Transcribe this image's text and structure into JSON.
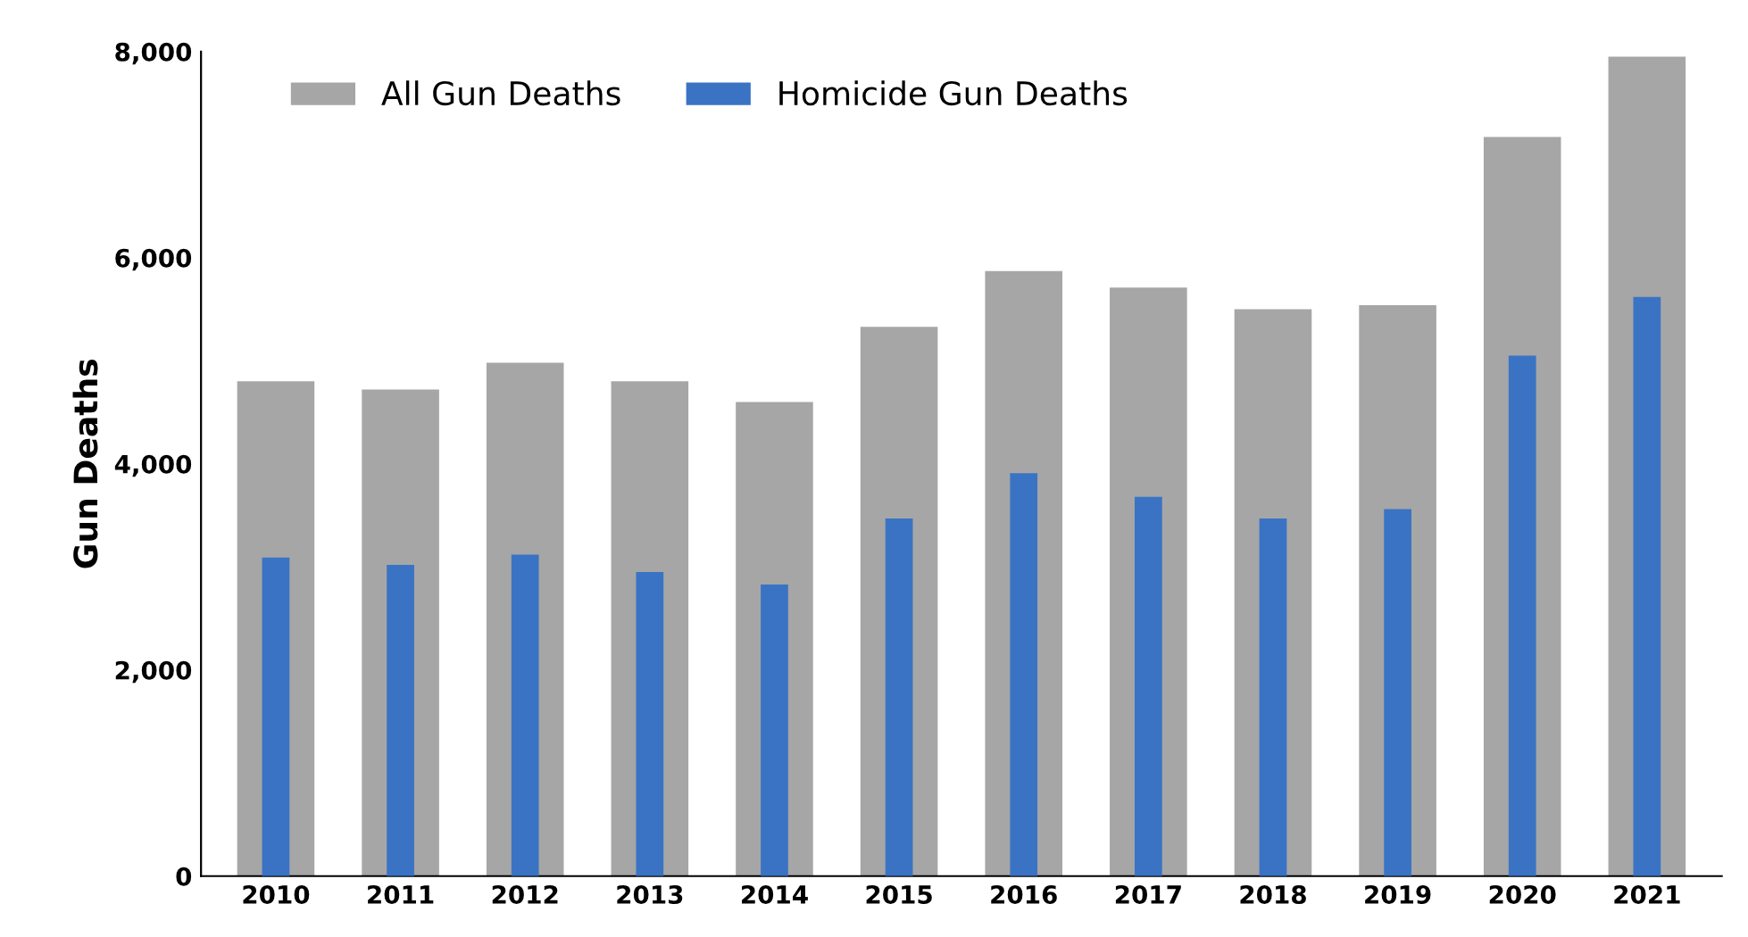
{
  "chart_data": {
    "type": "bar",
    "ylabel": "Gun Deaths",
    "categories": [
      "2010",
      "2011",
      "2012",
      "2013",
      "2014",
      "2015",
      "2016",
      "2017",
      "2018",
      "2019",
      "2020",
      "2021"
    ],
    "series": [
      {
        "name": "All Gun Deaths",
        "color": "#a6a6a6",
        "values": [
          4800,
          4720,
          4980,
          4800,
          4600,
          5330,
          5870,
          5710,
          5500,
          5540,
          7170,
          7950
        ]
      },
      {
        "name": "Homicide Gun Deaths",
        "color": "#3a73c4",
        "values": [
          3090,
          3020,
          3120,
          2950,
          2830,
          3470,
          3910,
          3680,
          3470,
          3560,
          5050,
          5620
        ]
      }
    ],
    "ylim": [
      0,
      8000
    ],
    "yticks": [
      {
        "value": 0,
        "label": "0"
      },
      {
        "value": 2000,
        "label": "2,000"
      },
      {
        "value": 4000,
        "label": "4,000"
      },
      {
        "value": 6000,
        "label": "6,000"
      },
      {
        "value": 8000,
        "label": "8,000"
      }
    ],
    "grid": false,
    "legend": "top left"
  }
}
